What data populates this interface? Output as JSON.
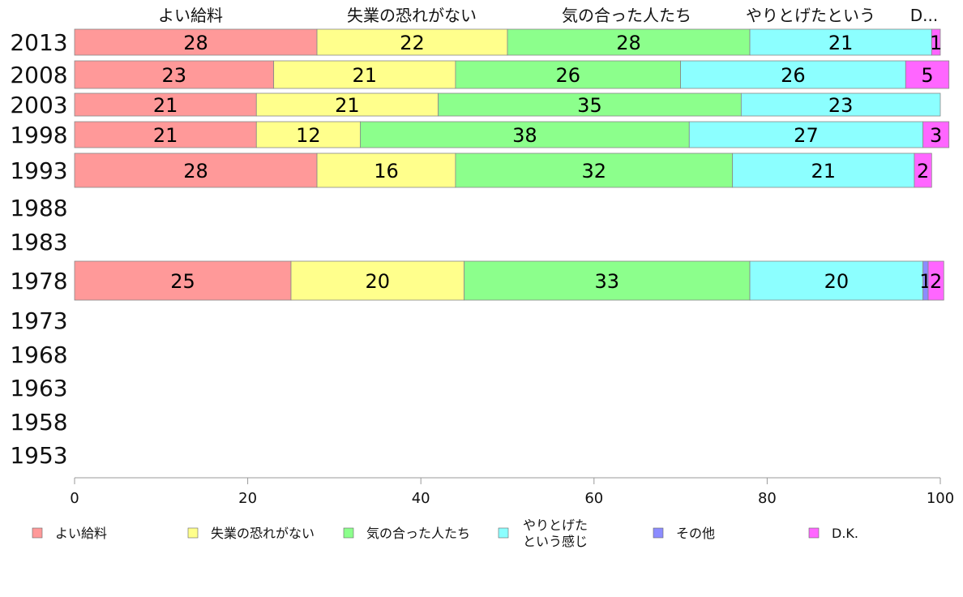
{
  "chart_data": {
    "type": "bar",
    "orientation": "horizontal",
    "stacked": true,
    "categories": [
      "2013",
      "2008",
      "2003",
      "1998",
      "1993",
      "1988",
      "1983",
      "1978",
      "1973",
      "1968",
      "1963",
      "1958",
      "1953"
    ],
    "series": [
      {
        "name": "よい給料",
        "color": "#ff9999",
        "values": [
          28,
          23,
          21,
          21,
          28,
          null,
          null,
          25,
          null,
          null,
          null,
          null,
          null
        ],
        "labels": [
          "28",
          "23",
          "21",
          "21",
          "28",
          "",
          "",
          "25",
          "",
          "",
          "",
          "",
          ""
        ]
      },
      {
        "name": "失業の恐れがない",
        "color": "#ffff8c",
        "values": [
          22,
          21,
          21,
          12,
          16,
          null,
          null,
          20,
          null,
          null,
          null,
          null,
          null
        ],
        "labels": [
          "22",
          "21",
          "21",
          "12",
          "16",
          "",
          "",
          "20",
          "",
          "",
          "",
          "",
          ""
        ]
      },
      {
        "name": "気の合った人たち",
        "color": "#8cff8c",
        "values": [
          28,
          26,
          35,
          38,
          32,
          null,
          null,
          33,
          null,
          null,
          null,
          null,
          null
        ],
        "labels": [
          "28",
          "26",
          "35",
          "38",
          "32",
          "",
          "",
          "33",
          "",
          "",
          "",
          "",
          ""
        ]
      },
      {
        "name": "やりとげた という感じ",
        "color": "#8cffff",
        "values": [
          21,
          26,
          23,
          27,
          21,
          null,
          null,
          20,
          null,
          null,
          null,
          null,
          null
        ],
        "labels": [
          "21",
          "26",
          "23",
          "27",
          "21",
          "",
          "",
          "20",
          "",
          "",
          "",
          "",
          ""
        ]
      },
      {
        "name": "その他",
        "color": "#8c8cff",
        "values": [
          0,
          0,
          0,
          0,
          0,
          null,
          null,
          0.6,
          null,
          null,
          null,
          null,
          null
        ],
        "labels": [
          "",
          "",
          "",
          "",
          "",
          "",
          "",
          "1",
          "",
          "",
          "",
          "",
          ""
        ]
      },
      {
        "name": "D.K.",
        "color": "#ff66ff",
        "values": [
          1,
          5,
          0,
          3,
          2,
          null,
          null,
          1.8,
          null,
          null,
          null,
          null,
          null
        ],
        "labels": [
          "1",
          "5",
          "",
          "3",
          "2",
          "",
          "",
          "2",
          "",
          "",
          "",
          "",
          ""
        ]
      }
    ],
    "top_labels": [
      "よい給料",
      "失業の恐れがない",
      "気の合った人たち",
      "やりとげたという感じ",
      "その他"
    ],
    "top_label_display": [
      "よい給料",
      "失業の恐れがない",
      "気の合った人たち",
      "やりとげたという",
      "D..."
    ],
    "xlim": [
      0,
      100
    ],
    "xticks": [
      0,
      20,
      40,
      60,
      80,
      100
    ],
    "legend": {
      "position": "bottom",
      "items": [
        "よい給料",
        "失業の恐れがない",
        "気の合った人たち",
        "やりとげた",
        "という感じ",
        "その他",
        "D.K."
      ]
    },
    "grid": false
  }
}
